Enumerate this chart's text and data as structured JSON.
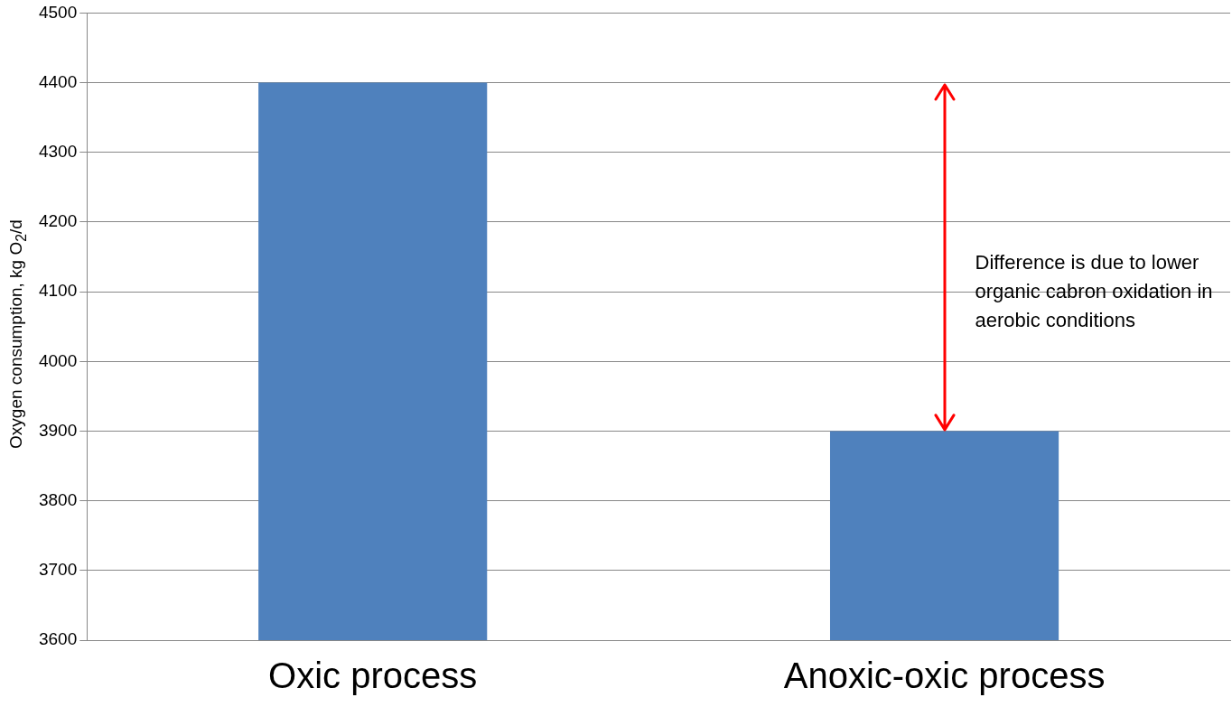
{
  "chart_data": {
    "type": "bar",
    "ylabel": "Oxygen consumption, kg O$_{2}$/d",
    "categories": [
      "Oxic process",
      "Anoxic-oxic process"
    ],
    "values": [
      4400,
      3900
    ],
    "color": "#4f81bd",
    "ylim": [
      3600,
      4500
    ],
    "yticks": [
      3600,
      3700,
      3800,
      3900,
      4000,
      4100,
      4200,
      4300,
      4400,
      4500
    ],
    "grid": "y",
    "annotations": [
      "Difference is due to lower organic cabron oxidation in aerobic conditions"
    ]
  }
}
